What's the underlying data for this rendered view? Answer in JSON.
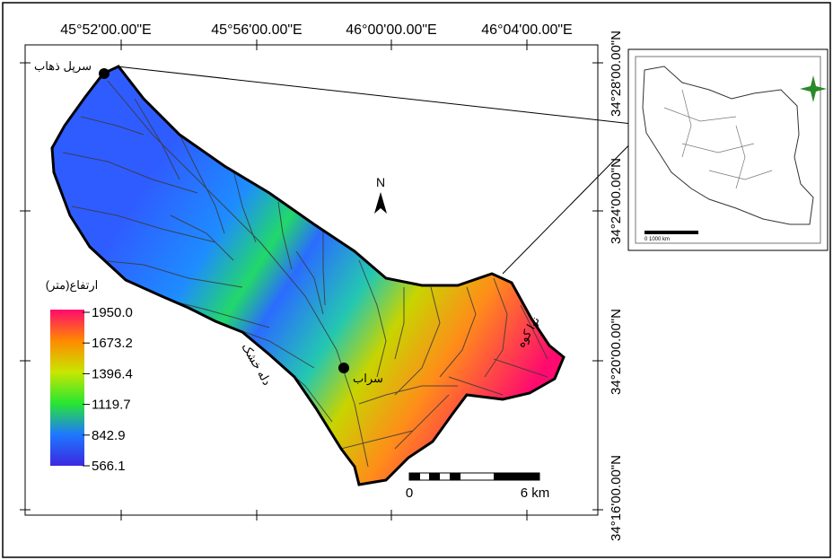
{
  "axes": {
    "top_labels": [
      "45°52'00.00\"E",
      "45°56'00.00\"E",
      "46°00'00.00\"E",
      "46°04'00.00\"E"
    ],
    "right_labels": [
      "34°28'00.00\"N",
      "34°24'00.00\"N",
      "34°20'00.00\"N",
      "34°16'00.00\"N"
    ]
  },
  "north_arrow": {
    "label": "N"
  },
  "legend": {
    "title": "ارتفاع(متر)",
    "values": [
      "1950.0",
      "1673.2",
      "1396.4",
      "1119.7",
      "842.9",
      "566.1"
    ],
    "colors": [
      "#ff0a6e",
      "#ff8a00",
      "#c8e600",
      "#28e632",
      "#1e78ff",
      "#3c28e0"
    ]
  },
  "places": {
    "sarpol": "سرپل ذهاب",
    "sarab": "سراب",
    "dalah": "دله خشک",
    "nava": "نوا کوه"
  },
  "scale_bar": {
    "start": "0",
    "end": "6 km"
  },
  "inset": {
    "scale_label": "0      1000 km"
  }
}
